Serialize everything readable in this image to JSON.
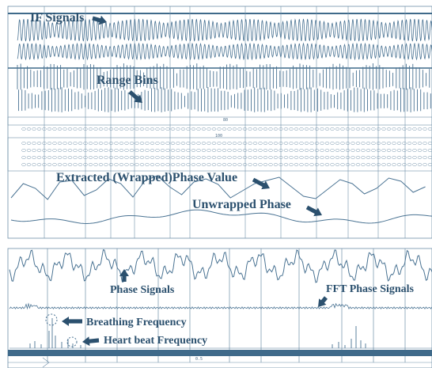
{
  "colors": {
    "signal": "#4a7393",
    "arrow": "#2b506e",
    "label": "#2b506e",
    "band": "#3f6a8a",
    "grid": "#6f8fa8"
  },
  "labels": {
    "if_signals": "IF Signals",
    "range_bins": "Range Bins",
    "wrapped_phase": "Extracted (Wrapped)Phase Value",
    "unwrapped_phase": "Unwrapped Phase",
    "phase_signals": "Phase Signals",
    "fft_phase_signals": "FFT Phase Signals",
    "breathing_frequency": "Breathing Frequency",
    "heart_beat_frequency": "Heart beat Frequency"
  },
  "axis_text": {
    "upper_tick_mid": "80",
    "upper_tick_right": "100",
    "bottom_tick_mid": "0.5"
  },
  "icons": [
    "arrow-icon",
    "circle-highlight-icon"
  ]
}
